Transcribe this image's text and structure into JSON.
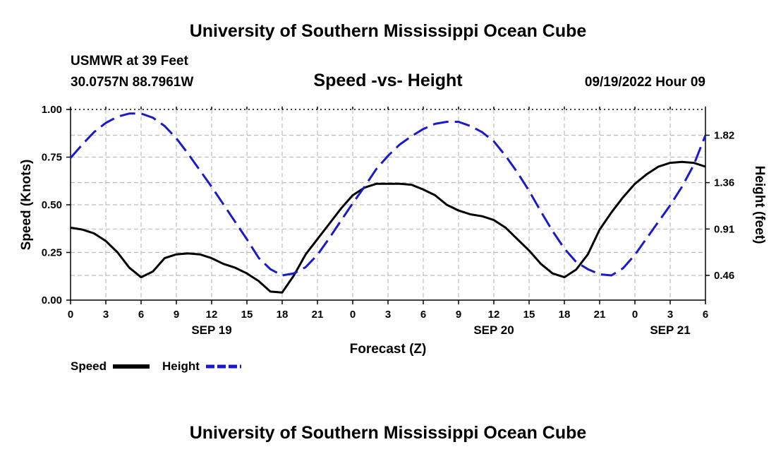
{
  "header": {
    "title": "University of Southern Mississippi Ocean Cube",
    "station": "USMWR at 39 Feet",
    "coords": "30.0757N  88.7961W",
    "subtitle": "Speed -vs- Height",
    "datetime": "09/19/2022 Hour 09"
  },
  "footer": {
    "title": "University of Southern Mississippi Ocean Cube"
  },
  "legend": {
    "speed_label": "Speed",
    "height_label": "Height"
  },
  "colors": {
    "speed": "#000000",
    "height": "#1a1acc",
    "grid": "#bdbdbd"
  },
  "chart_data": {
    "type": "line",
    "title": "Speed -vs- Height",
    "xlabel": "Forecast (Z)",
    "ylabel": "Speed (Knots)",
    "y2label": "Height (feet)",
    "xlim": [
      0,
      54
    ],
    "ylim": [
      0,
      1.0
    ],
    "y2lim": [
      0.22,
      2.07
    ],
    "x_ticks": [
      0,
      3,
      6,
      9,
      12,
      15,
      18,
      21,
      24,
      27,
      30,
      33,
      36,
      39,
      42,
      45,
      48,
      51,
      54
    ],
    "x_tick_labels": [
      "0",
      "3",
      "6",
      "9",
      "12",
      "15",
      "18",
      "21",
      "0",
      "3",
      "6",
      "9",
      "12",
      "15",
      "18",
      "21",
      "0",
      "3",
      "6"
    ],
    "date_labels": [
      {
        "label": "SEP 19",
        "x": 12
      },
      {
        "label": "SEP 20",
        "x": 36
      },
      {
        "label": "SEP 21",
        "x": 51
      }
    ],
    "y_ticks": [
      0.0,
      0.25,
      0.5,
      0.75,
      1.0
    ],
    "y_tick_labels": [
      "0.00",
      "0.25",
      "0.50",
      "0.75",
      "1.00"
    ],
    "y2_ticks": [
      0.46,
      0.91,
      1.36,
      1.82
    ],
    "y2_tick_labels": [
      "0.46",
      "0.91",
      "1.36",
      "1.82"
    ],
    "grid": true,
    "series": [
      {
        "name": "Speed",
        "axis": "left",
        "style": "solid",
        "x": [
          0,
          1,
          2,
          3,
          4,
          5,
          6,
          7,
          8,
          9,
          10,
          11,
          12,
          13,
          14,
          15,
          16,
          17,
          18,
          19,
          20,
          21,
          22,
          23,
          24,
          25,
          26,
          27,
          28,
          29,
          30,
          31,
          32,
          33,
          34,
          35,
          36,
          37,
          38,
          39,
          40,
          41,
          42,
          43,
          44,
          45,
          46,
          47,
          48,
          49,
          50,
          51,
          52,
          53,
          54
        ],
        "values": [
          0.38,
          0.37,
          0.35,
          0.31,
          0.25,
          0.17,
          0.12,
          0.15,
          0.22,
          0.24,
          0.245,
          0.24,
          0.22,
          0.19,
          0.17,
          0.14,
          0.1,
          0.045,
          0.04,
          0.13,
          0.24,
          0.32,
          0.4,
          0.48,
          0.55,
          0.59,
          0.61,
          0.61,
          0.61,
          0.605,
          0.58,
          0.55,
          0.5,
          0.47,
          0.45,
          0.44,
          0.42,
          0.38,
          0.32,
          0.26,
          0.19,
          0.14,
          0.12,
          0.16,
          0.24,
          0.37,
          0.46,
          0.54,
          0.61,
          0.66,
          0.7,
          0.72,
          0.725,
          0.72,
          0.7
        ]
      },
      {
        "name": "Height",
        "axis": "right",
        "style": "dashed",
        "x": [
          0,
          1,
          2,
          3,
          4,
          5,
          6,
          7,
          8,
          9,
          10,
          11,
          12,
          13,
          14,
          15,
          16,
          17,
          18,
          19,
          20,
          21,
          22,
          23,
          24,
          25,
          26,
          27,
          28,
          29,
          30,
          31,
          32,
          33,
          34,
          35,
          36,
          37,
          38,
          39,
          40,
          41,
          42,
          43,
          44,
          45,
          46,
          47,
          48,
          49,
          50,
          51,
          52,
          53,
          54
        ],
        "values": [
          1.6,
          1.73,
          1.85,
          1.94,
          2.0,
          2.03,
          2.03,
          1.99,
          1.91,
          1.79,
          1.64,
          1.48,
          1.32,
          1.15,
          0.98,
          0.81,
          0.63,
          0.52,
          0.46,
          0.48,
          0.54,
          0.66,
          0.82,
          0.99,
          1.16,
          1.32,
          1.49,
          1.62,
          1.73,
          1.81,
          1.88,
          1.93,
          1.95,
          1.95,
          1.91,
          1.85,
          1.76,
          1.62,
          1.46,
          1.28,
          1.08,
          0.89,
          0.72,
          0.59,
          0.52,
          0.47,
          0.46,
          0.53,
          0.66,
          0.82,
          0.98,
          1.14,
          1.32,
          1.53,
          1.82
        ]
      }
    ]
  }
}
